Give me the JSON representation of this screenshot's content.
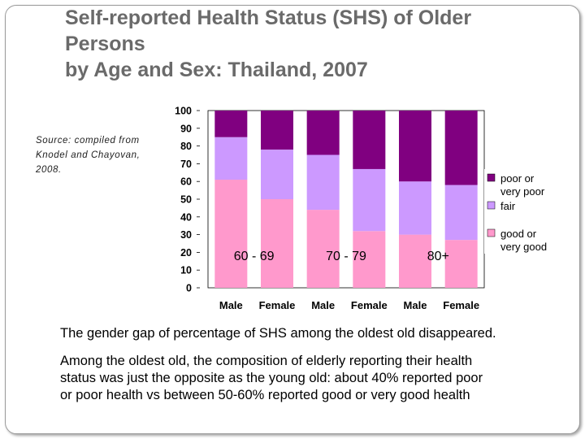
{
  "title": {
    "line1": "Self-reported Health Status (SHS) of Older",
    "line2": "Persons",
    "line3": "by Age and Sex: Thailand, 2007"
  },
  "source": {
    "line1": "Source: compiled from",
    "line2": "Knodel and Chayovan,",
    "line3": "2008."
  },
  "colors": {
    "poor": "#800080",
    "fair": "#cc99ff",
    "good": "#ff99cc",
    "plot_bg": "#ffffff",
    "border": "#000000"
  },
  "chart_data": {
    "type": "bar",
    "stacked": true,
    "categories": [
      "Male",
      "Female",
      "Male",
      "Female",
      "Male",
      "Female"
    ],
    "groups": [
      "60 - 69",
      "70 - 79",
      "80+"
    ],
    "ylim": [
      0,
      100
    ],
    "yticks": [
      "100",
      "90",
      "80",
      "70",
      "60",
      "50",
      "40",
      "30",
      "20",
      "10",
      "0"
    ],
    "series": [
      {
        "name": "good or very good",
        "key": "good",
        "values": [
          61,
          50,
          44,
          32,
          30,
          27
        ]
      },
      {
        "name": "fair",
        "key": "fair",
        "values": [
          24,
          28,
          31,
          35,
          30,
          31
        ]
      },
      {
        "name": "poor or very poor",
        "key": "poor",
        "values": [
          15,
          22,
          25,
          33,
          40,
          42
        ]
      }
    ],
    "legend_position": "right",
    "grid": false
  },
  "legend": {
    "poor_line1": "poor or",
    "poor_line2": "very poor",
    "fair": "fair",
    "good_line1": "good or",
    "good_line2": "very good"
  },
  "body": {
    "para1": "The gender gap of percentage of SHS among the oldest old disappeared.",
    "para2_line1": "Among the oldest old, the composition of elderly reporting their health",
    "para2_line2": "status was just the opposite as the young old: about 40% reported poor",
    "para2_line3": "or poor health vs between 50-60% reported good or very good health"
  }
}
